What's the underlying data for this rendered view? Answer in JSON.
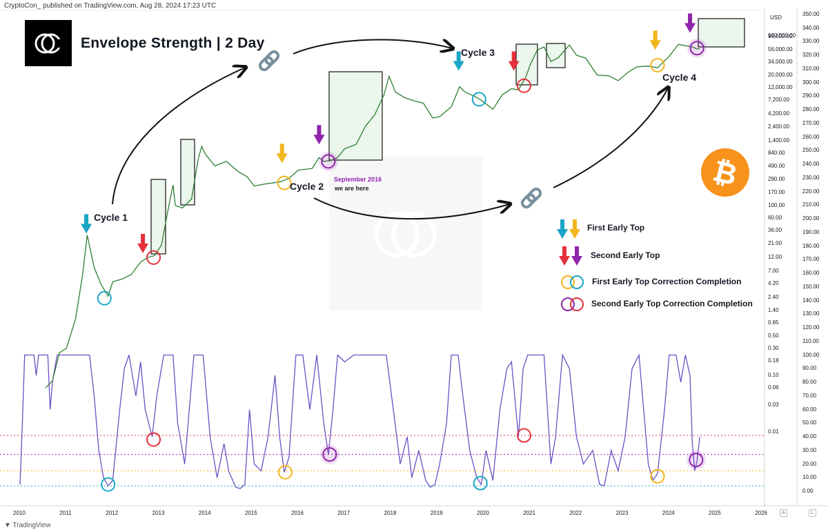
{
  "header": {
    "published": "CryptoCon_ published on TradingView.com, Aug 28, 2024 17:23 UTC"
  },
  "brand": {
    "title": "Envelope Strength | 2 Day",
    "logo_glyph": "CC"
  },
  "cycles": [
    "Cycle 1",
    "Cycle 2",
    "Cycle 3",
    "Cycle 4"
  ],
  "annotation": {
    "date": "September 2016",
    "note": "we are here"
  },
  "legend": {
    "first_early_top": "First Early Top",
    "second_early_top": "Second Early Top",
    "first_correction": "First Early Top Correction Completion",
    "second_correction": "Second Early Top Correction Completion"
  },
  "footer": {
    "tradingview": "TradingView"
  },
  "axis_buttons": {
    "auto": "A",
    "log": "L"
  },
  "colors": {
    "cyan": "#1aa6c6",
    "yellow": "#f2b51d",
    "red": "#e5313b",
    "purple": "#8e24aa",
    "oscillator": "#6a4fc2",
    "price": "#2e7d32",
    "btc": "#f7931a"
  },
  "chart_data": {
    "type": "line",
    "x_years": [
      "2010",
      "2011",
      "2012",
      "2013",
      "2014",
      "2015",
      "2016",
      "2017",
      "2018",
      "2019",
      "2020",
      "2021",
      "2022",
      "2023",
      "2024",
      "2025",
      "2026"
    ],
    "price_axis": {
      "unit": "USD",
      "scale": "log",
      "ticks": [
        "100,000.00",
        "96,000.00",
        "56,000.00",
        "34,000.00",
        "20,000.00",
        "12,000.00",
        "7,200.00",
        "4,200.00",
        "2,400.00",
        "1,400.00",
        "840.00",
        "490.00",
        "290.00",
        "170.00",
        "100.00",
        "60.00",
        "36.00",
        "21.00",
        "12.00",
        "7.00",
        "4.20",
        "2.40",
        "1.40",
        "0.85",
        "0.50",
        "0.30",
        "0.18",
        "0.10",
        "0.06",
        "0.03",
        "0.01"
      ]
    },
    "oscillator_axis": {
      "ticks": [
        "350.00",
        "340.00",
        "330.00",
        "320.00",
        "310.00",
        "300.00",
        "290.00",
        "280.00",
        "270.00",
        "260.00",
        "250.00",
        "240.00",
        "230.00",
        "220.00",
        "210.00",
        "200.00",
        "190.00",
        "180.00",
        "170.00",
        "160.00",
        "150.00",
        "140.00",
        "130.00",
        "120.00",
        "110.00",
        "100.00",
        "90.00",
        "80.00",
        "70.00",
        "60.00",
        "50.00",
        "40.00",
        "30.00",
        "20.00",
        "10.00",
        "0.00"
      ]
    },
    "price_series": [
      [
        2010.55,
        0.06
      ],
      [
        2010.7,
        0.08
      ],
      [
        2010.85,
        0.25
      ],
      [
        2011.0,
        0.3
      ],
      [
        2011.2,
        1.0
      ],
      [
        2011.35,
        6
      ],
      [
        2011.45,
        30
      ],
      [
        2011.6,
        8
      ],
      [
        2011.75,
        4
      ],
      [
        2011.9,
        2.5
      ],
      [
        2012.0,
        4.5
      ],
      [
        2012.2,
        5
      ],
      [
        2012.4,
        6
      ],
      [
        2012.6,
        10
      ],
      [
        2012.75,
        12
      ],
      [
        2012.9,
        13
      ],
      [
        2013.05,
        20
      ],
      [
        2013.2,
        90
      ],
      [
        2013.3,
        230
      ],
      [
        2013.35,
        100
      ],
      [
        2013.5,
        90
      ],
      [
        2013.7,
        130
      ],
      [
        2013.85,
        700
      ],
      [
        2013.92,
        1100
      ],
      [
        2014.0,
        800
      ],
      [
        2014.2,
        500
      ],
      [
        2014.45,
        600
      ],
      [
        2014.7,
        400
      ],
      [
        2014.9,
        320
      ],
      [
        2015.05,
        220
      ],
      [
        2015.3,
        240
      ],
      [
        2015.6,
        260
      ],
      [
        2015.8,
        300
      ],
      [
        2016.0,
        420
      ],
      [
        2016.3,
        450
      ],
      [
        2016.45,
        700
      ],
      [
        2016.55,
        600
      ],
      [
        2016.7,
        620
      ],
      [
        2016.85,
        700
      ],
      [
        2017.0,
        1000
      ],
      [
        2017.25,
        1200
      ],
      [
        2017.45,
        2500
      ],
      [
        2017.65,
        4000
      ],
      [
        2017.85,
        9000
      ],
      [
        2017.96,
        19000
      ],
      [
        2018.1,
        10000
      ],
      [
        2018.3,
        8000
      ],
      [
        2018.5,
        7000
      ],
      [
        2018.7,
        6400
      ],
      [
        2018.9,
        3500
      ],
      [
        2019.05,
        3700
      ],
      [
        2019.3,
        5500
      ],
      [
        2019.48,
        12500
      ],
      [
        2019.6,
        10000
      ],
      [
        2019.8,
        8500
      ],
      [
        2019.95,
        7200
      ],
      [
        2020.2,
        5000
      ],
      [
        2020.4,
        9000
      ],
      [
        2020.6,
        11500
      ],
      [
        2020.75,
        11000
      ],
      [
        2020.9,
        18000
      ],
      [
        2021.0,
        30000
      ],
      [
        2021.15,
        55000
      ],
      [
        2021.3,
        63000
      ],
      [
        2021.45,
        35000
      ],
      [
        2021.6,
        40000
      ],
      [
        2021.85,
        68000
      ],
      [
        2022.0,
        45000
      ],
      [
        2022.2,
        40000
      ],
      [
        2022.45,
        20000
      ],
      [
        2022.7,
        19500
      ],
      [
        2022.9,
        16000
      ],
      [
        2023.1,
        22000
      ],
      [
        2023.3,
        28000
      ],
      [
        2023.55,
        29000
      ],
      [
        2023.75,
        27000
      ],
      [
        2024.0,
        43000
      ],
      [
        2024.2,
        70000
      ],
      [
        2024.5,
        63000
      ],
      [
        2024.6,
        58000
      ],
      [
        2024.66,
        59000
      ]
    ],
    "oscillator_series": [
      [
        2010.0,
        5
      ],
      [
        2010.05,
        50
      ],
      [
        2010.1,
        100
      ],
      [
        2010.3,
        100
      ],
      [
        2010.35,
        85
      ],
      [
        2010.4,
        100
      ],
      [
        2010.6,
        100
      ],
      [
        2010.65,
        60
      ],
      [
        2010.7,
        80
      ],
      [
        2010.8,
        100
      ],
      [
        2011.05,
        100
      ],
      [
        2011.2,
        100
      ],
      [
        2011.35,
        100
      ],
      [
        2011.5,
        100
      ],
      [
        2011.6,
        70
      ],
      [
        2011.7,
        30
      ],
      [
        2011.8,
        10
      ],
      [
        2011.9,
        4
      ],
      [
        2012.0,
        8
      ],
      [
        2012.15,
        60
      ],
      [
        2012.25,
        90
      ],
      [
        2012.35,
        100
      ],
      [
        2012.5,
        70
      ],
      [
        2012.6,
        95
      ],
      [
        2012.7,
        60
      ],
      [
        2012.85,
        40
      ],
      [
        2012.95,
        70
      ],
      [
        2013.1,
        100
      ],
      [
        2013.3,
        100
      ],
      [
        2013.4,
        50
      ],
      [
        2013.55,
        20
      ],
      [
        2013.65,
        60
      ],
      [
        2013.75,
        100
      ],
      [
        2013.95,
        100
      ],
      [
        2014.1,
        40
      ],
      [
        2014.25,
        10
      ],
      [
        2014.4,
        35
      ],
      [
        2014.5,
        15
      ],
      [
        2014.65,
        3
      ],
      [
        2014.75,
        2
      ],
      [
        2014.85,
        5
      ],
      [
        2014.95,
        60
      ],
      [
        2015.05,
        20
      ],
      [
        2015.2,
        15
      ],
      [
        2015.35,
        40
      ],
      [
        2015.5,
        85
      ],
      [
        2015.6,
        40
      ],
      [
        2015.7,
        14
      ],
      [
        2015.8,
        25
      ],
      [
        2015.95,
        100
      ],
      [
        2016.1,
        100
      ],
      [
        2016.25,
        60
      ],
      [
        2016.4,
        100
      ],
      [
        2016.55,
        50
      ],
      [
        2016.65,
        27
      ],
      [
        2016.75,
        60
      ],
      [
        2016.85,
        100
      ],
      [
        2017.0,
        95
      ],
      [
        2017.2,
        100
      ],
      [
        2017.5,
        100
      ],
      [
        2017.7,
        100
      ],
      [
        2017.9,
        100
      ],
      [
        2018.05,
        60
      ],
      [
        2018.2,
        20
      ],
      [
        2018.35,
        40
      ],
      [
        2018.45,
        10
      ],
      [
        2018.6,
        30
      ],
      [
        2018.75,
        8
      ],
      [
        2018.85,
        3
      ],
      [
        2018.95,
        5
      ],
      [
        2019.05,
        20
      ],
      [
        2019.2,
        50
      ],
      [
        2019.3,
        100
      ],
      [
        2019.45,
        100
      ],
      [
        2019.55,
        70
      ],
      [
        2019.7,
        30
      ],
      [
        2019.85,
        10
      ],
      [
        2019.95,
        5
      ],
      [
        2020.05,
        30
      ],
      [
        2020.2,
        8
      ],
      [
        2020.35,
        60
      ],
      [
        2020.5,
        90
      ],
      [
        2020.6,
        95
      ],
      [
        2020.75,
        40
      ],
      [
        2020.85,
        90
      ],
      [
        2020.95,
        100
      ],
      [
        2021.1,
        100
      ],
      [
        2021.3,
        100
      ],
      [
        2021.45,
        20
      ],
      [
        2021.55,
        40
      ],
      [
        2021.7,
        100
      ],
      [
        2021.85,
        90
      ],
      [
        2022.0,
        40
      ],
      [
        2022.15,
        20
      ],
      [
        2022.35,
        30
      ],
      [
        2022.5,
        5
      ],
      [
        2022.6,
        4
      ],
      [
        2022.75,
        30
      ],
      [
        2022.9,
        15
      ],
      [
        2023.05,
        40
      ],
      [
        2023.2,
        90
      ],
      [
        2023.35,
        100
      ],
      [
        2023.45,
        60
      ],
      [
        2023.55,
        20
      ],
      [
        2023.65,
        8
      ],
      [
        2023.75,
        13
      ],
      [
        2023.9,
        60
      ],
      [
        2024.0,
        100
      ],
      [
        2024.15,
        100
      ],
      [
        2024.25,
        80
      ],
      [
        2024.35,
        100
      ],
      [
        2024.45,
        85
      ],
      [
        2024.5,
        35
      ],
      [
        2024.55,
        15
      ],
      [
        2024.6,
        22
      ],
      [
        2024.66,
        40
      ]
    ],
    "threshold_lines": [
      {
        "color": "red",
        "value": 41
      },
      {
        "color": "purple",
        "value": 27
      },
      {
        "color": "yellow",
        "value": 15
      },
      {
        "color": "cyan",
        "value": 4
      }
    ],
    "arrows": [
      {
        "color": "cyan",
        "x": 2011.43,
        "price": 40
      },
      {
        "color": "red",
        "x": 2012.65,
        "price": 18
      },
      {
        "color": "yellow",
        "x": 2015.65,
        "price": 700
      },
      {
        "color": "purple",
        "x": 2016.45,
        "price": 1500
      },
      {
        "color": "cyan",
        "x": 2019.46,
        "price": 30000
      },
      {
        "color": "red",
        "x": 2020.65,
        "price": 30000
      },
      {
        "color": "yellow",
        "x": 2023.7,
        "price": 70000
      },
      {
        "color": "purple",
        "x": 2024.45,
        "price": 140000
      }
    ],
    "price_circles": [
      {
        "color": "cyan",
        "x": 2011.82,
        "price": 2.3
      },
      {
        "color": "red",
        "x": 2012.88,
        "price": 12
      },
      {
        "color": "yellow",
        "x": 2015.7,
        "price": 250
      },
      {
        "color": "purple",
        "x": 2016.65,
        "price": 600
      },
      {
        "color": "cyan",
        "x": 2019.9,
        "price": 7500
      },
      {
        "color": "red",
        "x": 2020.87,
        "price": 13000
      },
      {
        "color": "yellow",
        "x": 2023.75,
        "price": 30000
      },
      {
        "color": "purple",
        "x": 2024.6,
        "price": 60000
      }
    ],
    "osc_circles": [
      {
        "color": "cyan",
        "x": 2011.9,
        "value": 5
      },
      {
        "color": "red",
        "x": 2012.88,
        "value": 38
      },
      {
        "color": "yellow",
        "x": 2015.72,
        "value": 14
      },
      {
        "color": "purple",
        "x": 2016.68,
        "value": 27
      },
      {
        "color": "cyan",
        "x": 2019.93,
        "value": 6
      },
      {
        "color": "red",
        "x": 2020.87,
        "value": 41
      },
      {
        "color": "yellow",
        "x": 2023.75,
        "value": 11
      },
      {
        "color": "purple",
        "x": 2024.58,
        "value": 23
      }
    ]
  }
}
